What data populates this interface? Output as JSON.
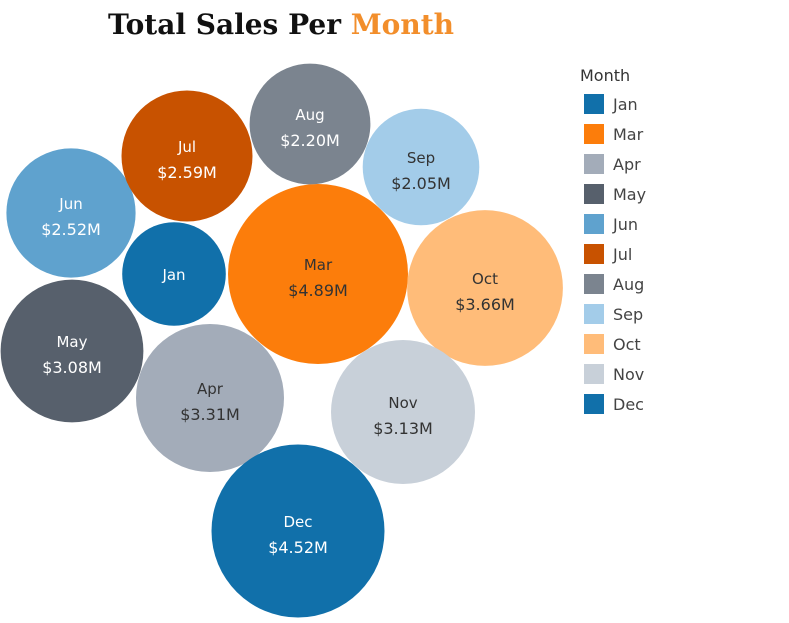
{
  "colors": {
    "title_accent": "#f28e2b",
    "dark_text": "#333333",
    "light_text": "#ffffff"
  },
  "chart_data": {
    "type": "bubble",
    "title": "Total Sales Per Month",
    "title_parts": [
      "Total Sales Per ",
      "Month"
    ],
    "legend": {
      "title": "Month",
      "position": "right",
      "entries": [
        {
          "name": "Jan",
          "color": "#1170aa"
        },
        {
          "name": "Mar",
          "color": "#fc7d0b"
        },
        {
          "name": "Apr",
          "color": "#a3acb9"
        },
        {
          "name": "May",
          "color": "#57606c"
        },
        {
          "name": "Jun",
          "color": "#5fa2ce"
        },
        {
          "name": "Jul",
          "color": "#c85200"
        },
        {
          "name": "Aug",
          "color": "#7b848f"
        },
        {
          "name": "Sep",
          "color": "#a3cce9"
        },
        {
          "name": "Oct",
          "color": "#ffbc79"
        },
        {
          "name": "Nov",
          "color": "#c8d0d9"
        },
        {
          "name": "Dec",
          "color": "#1170aa"
        }
      ]
    },
    "bubbles": [
      {
        "month": "Jan",
        "value": 1.62,
        "value_label": "",
        "color": "#1170aa"
      },
      {
        "month": "Mar",
        "value": 4.89,
        "value_label": "$4.89M",
        "color": "#fc7d0b"
      },
      {
        "month": "Apr",
        "value": 3.31,
        "value_label": "$3.31M",
        "color": "#a3acb9"
      },
      {
        "month": "May",
        "value": 3.08,
        "value_label": "$3.08M",
        "color": "#57606c"
      },
      {
        "month": "Jun",
        "value": 2.52,
        "value_label": "$2.52M",
        "color": "#5fa2ce"
      },
      {
        "month": "Jul",
        "value": 2.59,
        "value_label": "$2.59M",
        "color": "#c85200"
      },
      {
        "month": "Aug",
        "value": 2.2,
        "value_label": "$2.20M",
        "color": "#7b848f"
      },
      {
        "month": "Sep",
        "value": 2.05,
        "value_label": "$2.05M",
        "color": "#a3cce9"
      },
      {
        "month": "Oct",
        "value": 3.66,
        "value_label": "$3.66M",
        "color": "#ffbc79"
      },
      {
        "month": "Nov",
        "value": 3.13,
        "value_label": "$3.13M",
        "color": "#c8d0d9"
      },
      {
        "month": "Dec",
        "value": 4.52,
        "value_label": "$4.52M",
        "color": "#1170aa"
      }
    ]
  }
}
